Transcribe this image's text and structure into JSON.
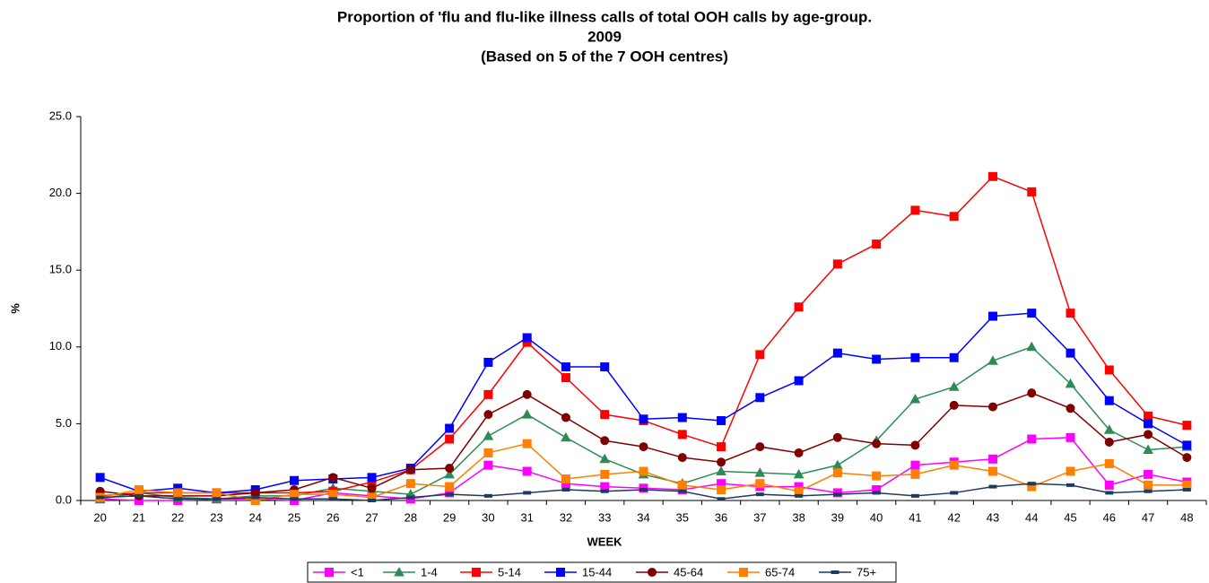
{
  "chart_data": {
    "type": "line",
    "title": [
      "Proportion of 'flu and flu-like illness calls of total OOH calls by age-group.",
      "2009",
      "(Based on 5 of the 7 OOH centres)"
    ],
    "x_label": "WEEK",
    "y_label": "%",
    "categories": [
      "20",
      "21",
      "22",
      "23",
      "24",
      "25",
      "26",
      "27",
      "28",
      "29",
      "30",
      "31",
      "32",
      "33",
      "34",
      "35",
      "36",
      "37",
      "38",
      "39",
      "40",
      "41",
      "42",
      "43",
      "44",
      "45",
      "46",
      "47",
      "48"
    ],
    "ylim": [
      0,
      25
    ],
    "yticks": [
      {
        "value": 0,
        "label": "0.0"
      },
      {
        "value": 5,
        "label": "5.0"
      },
      {
        "value": 10,
        "label": "10.0"
      },
      {
        "value": 15,
        "label": "15.0"
      },
      {
        "value": 20,
        "label": "20.0"
      },
      {
        "value": 25,
        "label": "25.0"
      }
    ],
    "legend": "bottom",
    "series": [
      {
        "name": "<1",
        "color": "#ff00ff",
        "marker": "square",
        "values": [
          0.1,
          0.0,
          0.0,
          0.1,
          0.1,
          0.0,
          0.5,
          0.3,
          0.1,
          0.5,
          2.3,
          1.9,
          1.1,
          0.9,
          0.8,
          0.7,
          1.1,
          0.9,
          0.9,
          0.5,
          0.7,
          2.3,
          2.5,
          2.7,
          4.0,
          4.1,
          1.0,
          1.7,
          1.2
        ]
      },
      {
        "name": "1-4",
        "color": "#2e8b57",
        "marker": "triangle",
        "values": [
          0.1,
          0.5,
          0.2,
          0.1,
          0.3,
          0.3,
          0.8,
          0.6,
          0.4,
          1.7,
          4.2,
          5.6,
          4.1,
          2.7,
          1.7,
          1.1,
          1.9,
          1.8,
          1.7,
          2.3,
          3.9,
          6.6,
          7.4,
          9.1,
          10.0,
          7.6,
          4.6,
          3.3,
          3.5
        ]
      },
      {
        "name": "5-14",
        "color": "#ff0000",
        "marker": "square",
        "values": [
          0.3,
          0.5,
          0.5,
          0.5,
          0.5,
          0.5,
          0.6,
          1.2,
          2.0,
          4.0,
          6.9,
          10.3,
          8.0,
          5.6,
          5.2,
          4.3,
          3.5,
          9.5,
          12.6,
          15.4,
          16.7,
          18.9,
          18.5,
          21.1,
          20.1,
          12.2,
          8.5,
          5.5,
          4.9
        ]
      },
      {
        "name": "15-44",
        "color": "#0000ff",
        "marker": "square",
        "values": [
          1.5,
          0.6,
          0.8,
          0.5,
          0.7,
          1.3,
          1.4,
          1.5,
          2.1,
          4.7,
          9.0,
          10.6,
          8.7,
          8.7,
          5.3,
          5.4,
          5.2,
          6.7,
          7.8,
          9.6,
          9.2,
          9.3,
          9.3,
          12.0,
          12.2,
          9.6,
          6.5,
          5.0,
          3.6
        ]
      },
      {
        "name": "45-64",
        "color": "#800000",
        "marker": "circle",
        "values": [
          0.6,
          0.3,
          0.3,
          0.3,
          0.5,
          0.7,
          1.5,
          0.8,
          2.0,
          2.1,
          5.6,
          6.9,
          5.4,
          3.9,
          3.5,
          2.8,
          2.5,
          3.5,
          3.1,
          4.1,
          3.7,
          3.6,
          6.2,
          6.1,
          7.0,
          6.0,
          3.8,
          4.3,
          2.8
        ]
      },
      {
        "name": "65-74",
        "color": "#ff7f00",
        "marker": "square",
        "values": [
          0.2,
          0.7,
          0.5,
          0.5,
          0.0,
          0.4,
          0.4,
          0.2,
          1.1,
          0.9,
          3.1,
          3.7,
          1.4,
          1.7,
          1.9,
          1.0,
          0.7,
          1.1,
          0.6,
          1.8,
          1.6,
          1.7,
          2.3,
          1.9,
          0.9,
          1.9,
          2.4,
          1.0,
          1.0
        ]
      },
      {
        "name": "75+",
        "color": "#1f3a5f",
        "marker": "dash",
        "values": [
          0.2,
          0.3,
          0.1,
          0.1,
          0.2,
          0.1,
          0.1,
          0.0,
          0.2,
          0.4,
          0.3,
          0.5,
          0.7,
          0.6,
          0.7,
          0.6,
          0.1,
          0.4,
          0.3,
          0.4,
          0.5,
          0.3,
          0.5,
          0.9,
          1.1,
          1.0,
          0.5,
          0.6,
          0.7
        ]
      }
    ]
  }
}
